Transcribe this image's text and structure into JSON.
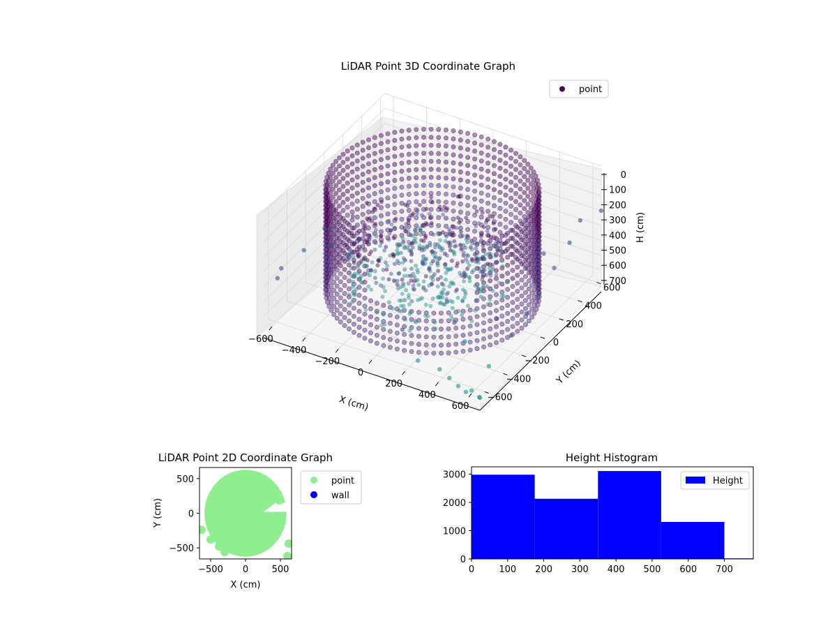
{
  "colors": {
    "point_3d_dark": "#440154",
    "point_3d_mid": "#3b528b",
    "point_3d_teal": "#21918c",
    "point_2d": "#90ee90",
    "wall": "#0000ff",
    "histogram_bar": "#0000ff",
    "pane_fill": "#f2f2f2",
    "grid": "#d9d9d9"
  },
  "chart_data": [
    {
      "type": "scatter",
      "projection": "3d",
      "title": "LiDAR Point 3D Coordinate Graph",
      "xlabel": "X (cm)",
      "ylabel": "Y (cm)",
      "zlabel": "H (cm)",
      "x_ticks": [
        -600,
        -400,
        -200,
        0,
        200,
        400,
        600
      ],
      "y_ticks": [
        -600,
        -400,
        -200,
        0,
        200,
        400,
        600
      ],
      "z_ticks": [
        0,
        100,
        200,
        300,
        400,
        500,
        600,
        700
      ],
      "xlim": [
        -650,
        650
      ],
      "ylim": [
        -650,
        650
      ],
      "zlim": [
        750,
        0
      ],
      "z_inverted": true,
      "legend": {
        "entries": [
          "point"
        ],
        "position": "top-right"
      },
      "grid": true,
      "colormap": "viridis",
      "structure": {
        "outer_ring_radius": 560,
        "ring_height_range": [
          0,
          700
        ],
        "notes": "dense cylindrical wall of points around origin"
      },
      "outlier_points": [
        {
          "x": -600,
          "y": -550,
          "z": 420
        },
        {
          "x": -640,
          "y": -520,
          "z": 520
        },
        {
          "x": -520,
          "y": -450,
          "z": 330
        },
        {
          "x": -480,
          "y": -300,
          "z": 260
        },
        {
          "x": -380,
          "y": -400,
          "z": 280
        },
        {
          "x": -300,
          "y": -250,
          "z": 300
        },
        {
          "x": 100,
          "y": -500,
          "z": 600
        },
        {
          "x": 250,
          "y": -600,
          "z": 690
        },
        {
          "x": 380,
          "y": -600,
          "z": 700
        },
        {
          "x": 450,
          "y": -620,
          "z": 720
        },
        {
          "x": 520,
          "y": -650,
          "z": 730
        },
        {
          "x": 600,
          "y": -650,
          "z": 730
        },
        {
          "x": 620,
          "y": -500,
          "z": 650
        },
        {
          "x": 640,
          "y": -300,
          "z": 560
        },
        {
          "x": 650,
          "y": -150,
          "z": 500
        },
        {
          "x": 640,
          "y": 0,
          "z": 470
        },
        {
          "x": 620,
          "y": 200,
          "z": 420
        },
        {
          "x": 600,
          "y": 400,
          "z": 380
        },
        {
          "x": 580,
          "y": 550,
          "z": 330
        },
        {
          "x": 650,
          "y": 650,
          "z": 300
        },
        {
          "x": 500,
          "y": 300,
          "z": 430
        },
        {
          "x": 560,
          "y": 100,
          "z": 470
        },
        {
          "x": 500,
          "y": -200,
          "z": 560
        },
        {
          "x": 420,
          "y": -400,
          "z": 620
        },
        {
          "x": 300,
          "y": -300,
          "z": 600
        },
        {
          "x": 200,
          "y": -200,
          "z": 560
        },
        {
          "x": 650,
          "y": -650,
          "z": 760
        },
        {
          "x": 630,
          "y": -620,
          "z": 780
        },
        {
          "x": 560,
          "y": -640,
          "z": 760
        }
      ]
    },
    {
      "type": "scatter",
      "projection": "2d",
      "title": "LiDAR Point 2D Coordinate Graph",
      "xlabel": "X (cm)",
      "ylabel": "Y (cm)",
      "x_ticks": [
        -500,
        0,
        500
      ],
      "y_ticks": [
        -500,
        0,
        500
      ],
      "xlim": [
        -660,
        660
      ],
      "ylim": [
        -660,
        660
      ],
      "legend": {
        "entries": [
          "point",
          "wall"
        ],
        "position": "outside-right"
      },
      "shape": "filled disc of points, radius about 560, centered at origin, cutout notch at right side near y=0"
    },
    {
      "type": "bar",
      "title": "Height Histogram",
      "xlabel": "",
      "ylabel": "",
      "bins": [
        {
          "from": 0,
          "to": 175,
          "count": 2980
        },
        {
          "from": 175,
          "to": 350,
          "count": 2130
        },
        {
          "from": 350,
          "to": 525,
          "count": 3110
        },
        {
          "from": 525,
          "to": 700,
          "count": 1310
        },
        {
          "from": 700,
          "to": 875,
          "count": 20
        }
      ],
      "x_ticks": [
        0,
        100,
        200,
        300,
        400,
        500,
        600,
        700
      ],
      "y_ticks": [
        0,
        1000,
        2000,
        3000
      ],
      "xlim": [
        0,
        780
      ],
      "ylim": [
        0,
        3260
      ],
      "legend": {
        "entries": [
          "Height"
        ],
        "position": "top-right"
      }
    }
  ]
}
